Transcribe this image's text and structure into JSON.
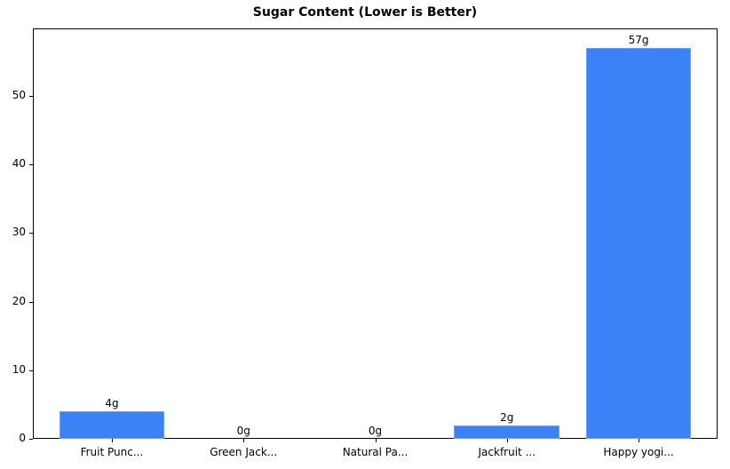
{
  "chart_data": {
    "type": "bar",
    "title": "Sugar Content (Lower is Better)",
    "xlabel": "",
    "ylabel": "",
    "categories": [
      "Fruit Punc...",
      "Green Jack...",
      "Natural Pa...",
      "Jackfruit ...",
      "Happy yogi..."
    ],
    "values": [
      4,
      0,
      0,
      2,
      57
    ],
    "value_labels": [
      "4g",
      "0g",
      "0g",
      "2g",
      "57g"
    ],
    "ylim": [
      0,
      59.85
    ],
    "yticks": [
      0,
      10,
      20,
      30,
      40,
      50
    ],
    "grid": false,
    "legend": null,
    "bar_color": "#3b82f6",
    "bar_edge_color": "#60a5fa"
  }
}
